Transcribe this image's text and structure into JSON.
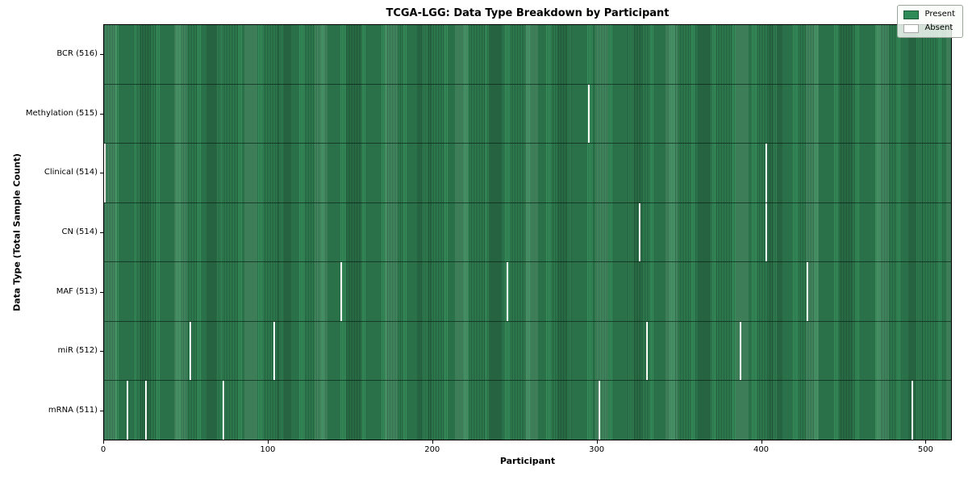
{
  "chart_data": {
    "type": "heatmap",
    "title": "TCGA-LGG: Data Type Breakdown by Participant",
    "xlabel": "Participant",
    "ylabel": "Data Type (Total Sample Count)",
    "x_ticks": [
      0,
      100,
      200,
      300,
      400,
      500
    ],
    "x_range": [
      0,
      516
    ],
    "n_participants": 516,
    "grid": false,
    "legend_position": "upper right",
    "legend_items": [
      {
        "label": "Present",
        "color": "#2e8b57"
      },
      {
        "label": "Absent",
        "color": "#ffffff"
      }
    ],
    "colors": {
      "present": "#2e8b57",
      "present_edge": "#1c5034",
      "absent": "#fbfbf8"
    },
    "rows": [
      {
        "label": "BCR (516)",
        "total": 516,
        "absent_participants": []
      },
      {
        "label": "Methylation (515)",
        "total": 515,
        "absent_participants": [
          295
        ]
      },
      {
        "label": "Clinical (514)",
        "total": 514,
        "absent_participants": [
          0,
          403
        ]
      },
      {
        "label": "CN (514)",
        "total": 514,
        "absent_participants": [
          326,
          403
        ]
      },
      {
        "label": "MAF (513)",
        "total": 513,
        "absent_participants": [
          144,
          245,
          428
        ]
      },
      {
        "label": "miR (512)",
        "total": 512,
        "absent_participants": [
          52,
          103,
          330,
          387
        ]
      },
      {
        "label": "mRNA (511)",
        "total": 511,
        "absent_participants": [
          14,
          25,
          72,
          301,
          492
        ]
      }
    ]
  }
}
